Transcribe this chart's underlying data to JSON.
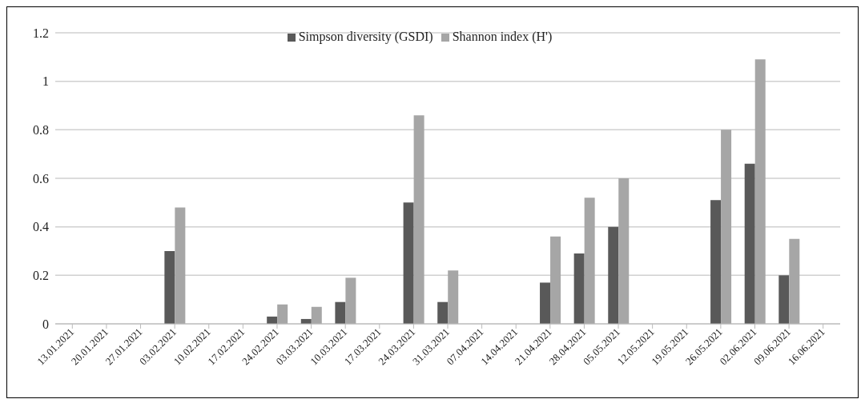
{
  "chart_data": {
    "type": "bar",
    "categories": [
      "13.01.2021",
      "20.01.2021",
      "27.01.2021",
      "03.02.2021",
      "10.02.2021",
      "17.02.2021",
      "24.02.2021",
      "03.03.2021",
      "10.03.2021",
      "17.03.2021",
      "24.03.2021",
      "31.03.2021",
      "07.04.2021",
      "14.04.2021",
      "21.04.2021",
      "28.04.2021",
      "05.05.2021",
      "12.05.2021",
      "19.05.2021",
      "26.05.2021",
      "02.06.2021",
      "09.06.2021",
      "16.06.2021"
    ],
    "series": [
      {
        "name": "Simpson diversity (GSDI)",
        "color": "#595959",
        "values": [
          0,
          0,
          0,
          0.3,
          0,
          0,
          0.03,
          0.02,
          0.09,
          0,
          0.5,
          0.09,
          0,
          0,
          0.17,
          0.29,
          0.4,
          0,
          0,
          0.51,
          0.66,
          0.2,
          0
        ]
      },
      {
        "name": "Shannon index (H')",
        "color": "#a6a6a6",
        "values": [
          0,
          0,
          0,
          0.48,
          0,
          0,
          0.08,
          0.07,
          0.19,
          0,
          0.86,
          0.22,
          0,
          0,
          0.36,
          0.52,
          0.6,
          0,
          0,
          0.8,
          1.09,
          0.35,
          0
        ]
      }
    ],
    "ylim": [
      0,
      1.2
    ],
    "yticks": [
      0,
      0.2,
      0.4,
      0.6,
      0.8,
      1,
      1.2
    ],
    "grid": "y",
    "legend": "top"
  }
}
